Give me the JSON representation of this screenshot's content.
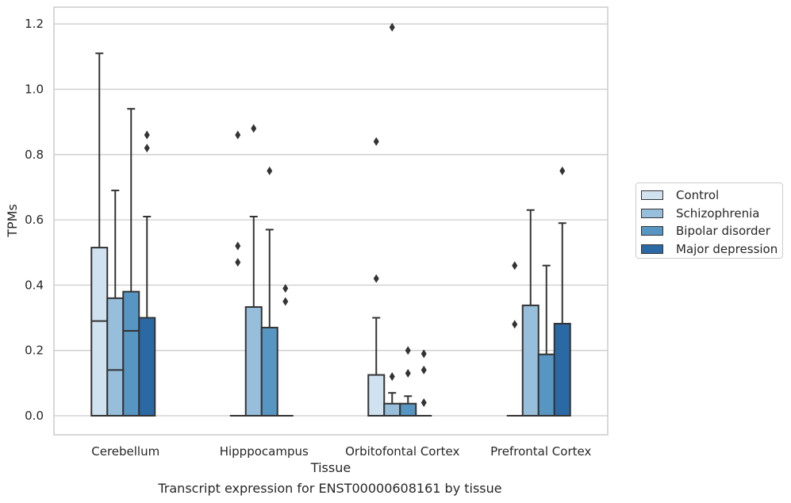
{
  "chart_data": {
    "type": "boxplot",
    "xlabel": "Tissue",
    "ylabel": "TPMs",
    "caption": "Transcript expression for ENST00000608161 by tissue",
    "ylim": [
      -0.06,
      1.25
    ],
    "yticks": [
      0.0,
      0.2,
      0.4,
      0.6,
      0.8,
      1.0,
      1.2
    ],
    "ytick_labels": [
      "0.0",
      "0.2",
      "0.4",
      "0.6",
      "0.8",
      "1.0",
      "1.2"
    ],
    "grid": "horizontal",
    "legend_position": "right",
    "categories": [
      "Cerebellum",
      "Hipppocampus",
      "Orbitofontal Cortex",
      "Prefrontal Cortex"
    ],
    "series": [
      {
        "name": "Control",
        "color": "#d0e1f0",
        "boxes": [
          {
            "q1": 0.0,
            "median": 0.29,
            "q3": 0.515,
            "whisker_low": 0.0,
            "whisker_high": 1.11,
            "outliers": []
          },
          {
            "q1": 0.0,
            "median": 0.0,
            "q3": 0.0,
            "whisker_low": 0.0,
            "whisker_high": 0.0,
            "outliers": [
              0.86,
              0.52,
              0.47
            ]
          },
          {
            "q1": 0.0,
            "median": 0.0,
            "q3": 0.125,
            "whisker_low": 0.0,
            "whisker_high": 0.3,
            "outliers": [
              0.84,
              0.42
            ]
          },
          {
            "q1": 0.0,
            "median": 0.0,
            "q3": 0.0,
            "whisker_low": 0.0,
            "whisker_high": 0.0,
            "outliers": [
              0.46,
              0.28
            ]
          }
        ]
      },
      {
        "name": "Schizophrenia",
        "color": "#97bfdb",
        "boxes": [
          {
            "q1": 0.0,
            "median": 0.14,
            "q3": 0.36,
            "whisker_low": 0.0,
            "whisker_high": 0.69,
            "outliers": []
          },
          {
            "q1": 0.0,
            "median": 0.0,
            "q3": 0.333,
            "whisker_low": 0.0,
            "whisker_high": 0.61,
            "outliers": [
              0.88
            ]
          },
          {
            "q1": 0.0,
            "median": 0.0,
            "q3": 0.037,
            "whisker_low": 0.0,
            "whisker_high": 0.07,
            "outliers": [
              1.19,
              0.12
            ]
          },
          {
            "q1": 0.0,
            "median": 0.0,
            "q3": 0.338,
            "whisker_low": 0.0,
            "whisker_high": 0.63,
            "outliers": []
          }
        ]
      },
      {
        "name": "Bipolar disorder",
        "color": "#5796c3",
        "boxes": [
          {
            "q1": 0.0,
            "median": 0.26,
            "q3": 0.38,
            "whisker_low": 0.0,
            "whisker_high": 0.94,
            "outliers": []
          },
          {
            "q1": 0.0,
            "median": 0.0,
            "q3": 0.27,
            "whisker_low": 0.0,
            "whisker_high": 0.57,
            "outliers": [
              0.75
            ]
          },
          {
            "q1": 0.0,
            "median": 0.0,
            "q3": 0.037,
            "whisker_low": 0.0,
            "whisker_high": 0.06,
            "outliers": [
              0.2,
              0.13
            ]
          },
          {
            "q1": 0.0,
            "median": 0.0,
            "q3": 0.188,
            "whisker_low": 0.0,
            "whisker_high": 0.46,
            "outliers": []
          }
        ]
      },
      {
        "name": "Major depression",
        "color": "#2b69a5",
        "boxes": [
          {
            "q1": 0.0,
            "median": 0.0,
            "q3": 0.3,
            "whisker_low": 0.0,
            "whisker_high": 0.61,
            "outliers": [
              0.86,
              0.82
            ]
          },
          {
            "q1": 0.0,
            "median": 0.0,
            "q3": 0.0,
            "whisker_low": 0.0,
            "whisker_high": 0.0,
            "outliers": [
              0.39,
              0.35
            ]
          },
          {
            "q1": 0.0,
            "median": 0.0,
            "q3": 0.0,
            "whisker_low": 0.0,
            "whisker_high": 0.0,
            "outliers": [
              0.19,
              0.14,
              0.04
            ]
          },
          {
            "q1": 0.0,
            "median": 0.0,
            "q3": 0.282,
            "whisker_low": 0.0,
            "whisker_high": 0.59,
            "outliers": [
              0.75
            ]
          }
        ]
      }
    ]
  }
}
